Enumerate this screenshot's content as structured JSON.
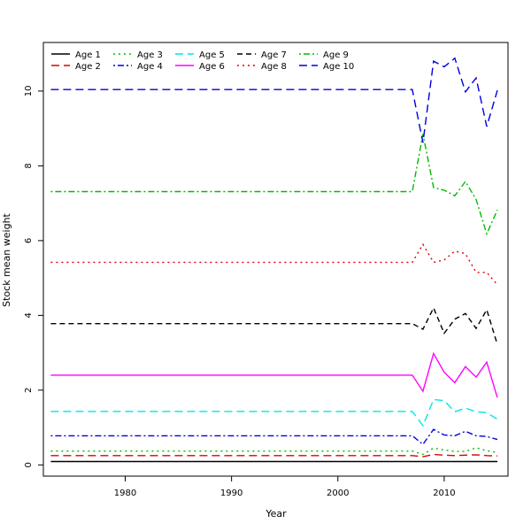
{
  "chart_data": {
    "type": "line",
    "xlabel": "Year",
    "ylabel": "Stock mean weight",
    "xlim": [
      1972.3,
      1975.5
    ],
    "xrange": [
      1972.3,
      2016.0
    ],
    "ylim": [
      -0.3,
      11.3
    ],
    "xticks": [
      1980,
      1990,
      2000,
      2010
    ],
    "yticks": [
      0,
      2,
      4,
      6,
      8,
      10
    ],
    "legend_position": "top-left",
    "grid": false,
    "x": [
      1973,
      1974,
      1975,
      1976,
      1977,
      1978,
      1979,
      1980,
      1981,
      1982,
      1983,
      1984,
      1985,
      1986,
      1987,
      1988,
      1989,
      1990,
      1991,
      1992,
      1993,
      1994,
      1995,
      1996,
      1997,
      1998,
      1999,
      2000,
      2001,
      2002,
      2003,
      2004,
      2005,
      2006,
      2007,
      2008,
      2009,
      2010,
      2011,
      2012,
      2013,
      2014,
      2015
    ],
    "series": [
      {
        "name": "Age 1",
        "color": "#000000",
        "dash": "solid",
        "base": 0.09,
        "tail": [
          0.09,
          0.09,
          0.09,
          0.09,
          0.09,
          0.09,
          0.09,
          0.09,
          0.09
        ]
      },
      {
        "name": "Age 2",
        "color": "#dd0000",
        "dash": "long",
        "base": 0.25,
        "tail": [
          0.25,
          0.22,
          0.28,
          0.26,
          0.25,
          0.26,
          0.27,
          0.25,
          0.24
        ]
      },
      {
        "name": "Age 3",
        "color": "#00bb00",
        "dash": "dot",
        "base": 0.37,
        "tail": [
          0.37,
          0.28,
          0.45,
          0.4,
          0.36,
          0.36,
          0.46,
          0.38,
          0.33
        ]
      },
      {
        "name": "Age 4",
        "color": "#0000dd",
        "dash": "dotdash",
        "base": 0.78,
        "tail": [
          0.78,
          0.55,
          0.95,
          0.8,
          0.78,
          0.9,
          0.78,
          0.76,
          0.68
        ]
      },
      {
        "name": "Age 5",
        "color": "#00e5e5",
        "dash": "long",
        "base": 1.43,
        "tail": [
          1.43,
          1.05,
          1.75,
          1.72,
          1.42,
          1.52,
          1.42,
          1.4,
          1.22
        ]
      },
      {
        "name": "Age 6",
        "color": "#ff00ff",
        "dash": "solid",
        "base": 2.4,
        "tail": [
          2.4,
          1.97,
          2.98,
          2.48,
          2.2,
          2.63,
          2.35,
          2.75,
          1.8
        ]
      },
      {
        "name": "Age 7",
        "color": "#000000",
        "dash": "dash",
        "base": 3.78,
        "tail": [
          3.78,
          3.63,
          4.2,
          3.52,
          3.9,
          4.05,
          3.65,
          4.15,
          3.22
        ]
      },
      {
        "name": "Age 8",
        "color": "#dd0000",
        "dash": "dot",
        "base": 5.42,
        "tail": [
          5.42,
          5.9,
          5.42,
          5.48,
          5.72,
          5.65,
          5.15,
          5.15,
          4.82
        ]
      },
      {
        "name": "Age 9",
        "color": "#00bb00",
        "dash": "dotdash",
        "base": 7.31,
        "tail": [
          7.31,
          8.85,
          7.42,
          7.35,
          7.2,
          7.58,
          7.1,
          6.18,
          6.82
        ]
      },
      {
        "name": "Age 10",
        "color": "#0000dd",
        "dash": "long",
        "base": 10.04,
        "tail": [
          10.04,
          8.62,
          10.8,
          10.65,
          10.88,
          9.98,
          10.35,
          9.05,
          10.02
        ]
      }
    ]
  }
}
